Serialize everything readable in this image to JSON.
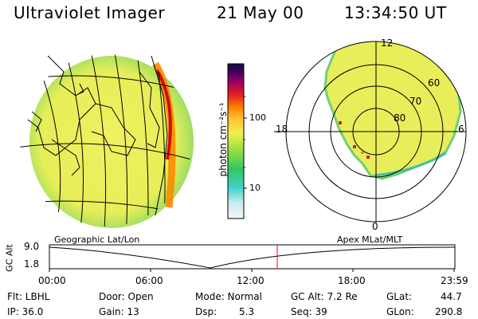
{
  "header": {
    "title": "Ultraviolet Imager",
    "date": "21 May 00",
    "time": "13:34:50 UT"
  },
  "colorbar": {
    "label": "photon cm⁻²s⁻¹",
    "ticks": [
      "100",
      "10"
    ],
    "scale": "log"
  },
  "polar_plot": {
    "clock_labels": [
      "12",
      "18",
      "6",
      "0"
    ],
    "latitude_labels": [
      "60",
      "70",
      "80"
    ]
  },
  "timeline": {
    "axis_label": "GC Alt",
    "left_caption": "Geographic Lat/Lon",
    "right_caption": "Apex MLat/MLT",
    "y_ticks": [
      "9.0",
      "1.8"
    ],
    "x_ticks": [
      "00:00",
      "06:00",
      "12:00",
      "18:00",
      "23:59"
    ],
    "current_time_color": "#ff0000"
  },
  "status": {
    "flt": "Flt: LBHL",
    "ip": "IP: 36.0",
    "door": "Door: Open",
    "gain": "Gain: 13",
    "mode": "Mode: Normal",
    "dsp_label": "Dsp:",
    "dsp_value": "5.3",
    "gc_alt": "GC Alt: 7.2 Re",
    "seq": "Seq: 39",
    "glat_label": "GLat:",
    "glat_value": "44.7",
    "glon_label": "GLon:",
    "glon_value": "290.8"
  },
  "colors": {
    "image_base": "#e8ee5a",
    "image_edge": "#7fd65a",
    "aurora_peak": "#cc1010",
    "aurora_high": "#ff8800"
  }
}
